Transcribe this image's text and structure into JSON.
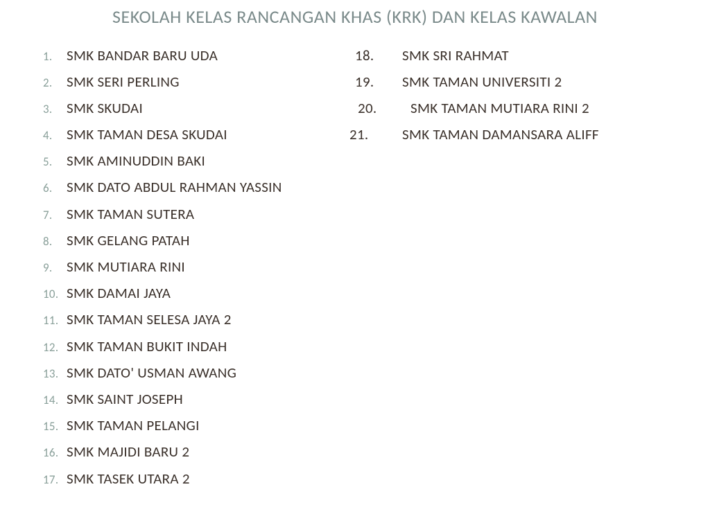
{
  "title": "SEKOLAH KELAS RANCANGAN KHAS (KRK) DAN KELAS KAWALAN",
  "colors": {
    "title": "#7a8a8a",
    "number_left": "#8aa09a",
    "text": "#3a302a",
    "background": "#ffffff"
  },
  "typography": {
    "title_fontsize": 26,
    "list_fontsize": 21,
    "number_left_fontsize": 17
  },
  "left_column": [
    {
      "num": "1.",
      "name": "SMK BANDAR BARU UDA"
    },
    {
      "num": "2.",
      "name": "SMK SERI PERLING"
    },
    {
      "num": "3.",
      "name": "SMK SKUDAI"
    },
    {
      "num": "4.",
      "name": "SMK TAMAN DESA SKUDAI"
    },
    {
      "num": "5.",
      "name": "SMK AMINUDDIN BAKI"
    },
    {
      "num": "6.",
      "name": "SMK DATO ABDUL RAHMAN YASSIN"
    },
    {
      "num": "7.",
      "name": "SMK TAMAN SUTERA"
    },
    {
      "num": "8.",
      "name": "SMK GELANG PATAH"
    },
    {
      "num": "9.",
      "name": "SMK MUTIARA RINI"
    },
    {
      "num": "10.",
      "name": "SMK DAMAI JAYA"
    },
    {
      "num": "11.",
      "name": "SMK TAMAN SELESA JAYA 2"
    },
    {
      "num": "12.",
      "name": "SMK TAMAN BUKIT INDAH"
    },
    {
      "num": "13.",
      "name": "SMK DATO' USMAN AWANG"
    },
    {
      "num": "14.",
      "name": "SMK SAINT JOSEPH"
    },
    {
      "num": "15.",
      "name": "SMK TAMAN PELANGI"
    },
    {
      "num": "16.",
      "name": "SMK MAJIDI BARU 2"
    },
    {
      "num": "17.",
      "name": "SMK TASEK UTARA 2"
    }
  ],
  "right_column": [
    {
      "num": "18.",
      "name": "SMK SRI RAHMAT",
      "indent": 0,
      "name_indent": 14
    },
    {
      "num": "19.",
      "name": "SMK TAMAN UNIVERSITI 2",
      "indent": 0,
      "name_indent": 14
    },
    {
      "num": "20.",
      "name": "SMK TAMAN MUTIARA RINI 2",
      "indent": 4,
      "name_indent": 22
    },
    {
      "num": "21.",
      "name": "SMK TAMAN DAMANSARA ALIFF",
      "indent": -8,
      "name_indent": 22
    }
  ]
}
